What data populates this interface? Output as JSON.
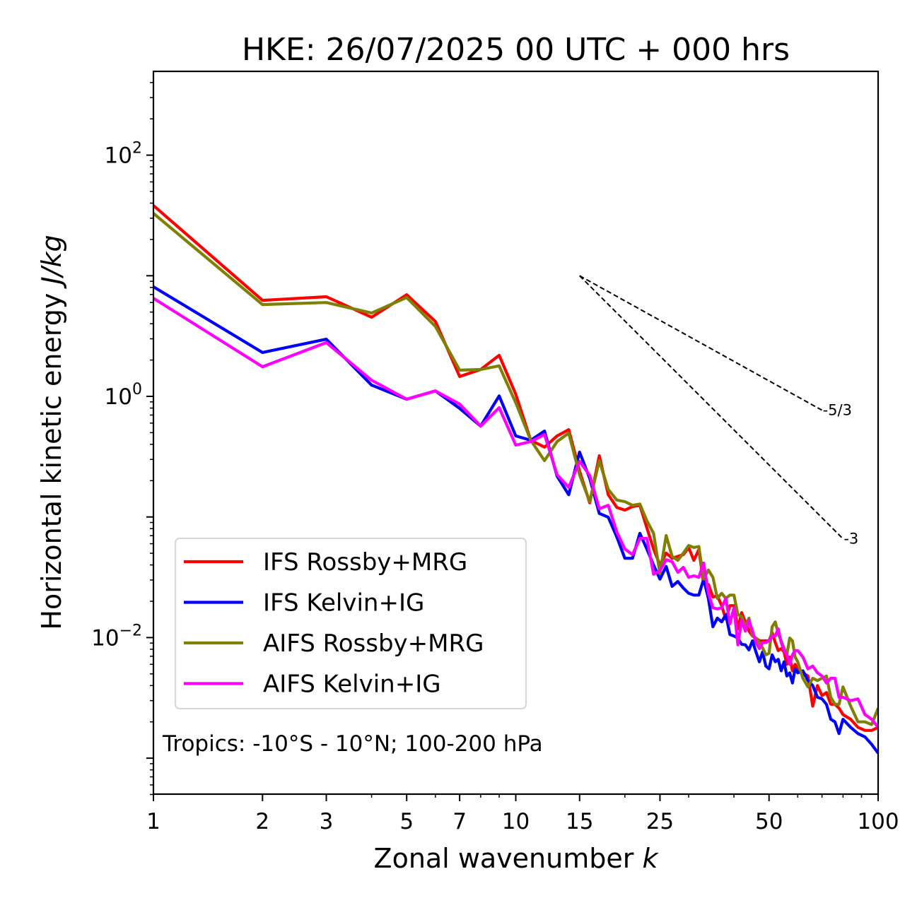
{
  "chart_data": {
    "type": "line",
    "title": "HKE: 26/07/2025 00 UTC + 000 hrs",
    "xlabel": "Zonal wavenumber",
    "xlabel_italic": "k",
    "ylabel": "Horizontal kinetic energy",
    "ylabel_italic": "J/kg",
    "xscale": "log",
    "yscale": "log",
    "xlim": [
      1,
      100
    ],
    "ylim": [
      0.0005,
      500
    ],
    "grid": false,
    "x_ticks": [
      {
        "value": 1,
        "label": "1"
      },
      {
        "value": 2,
        "label": "2"
      },
      {
        "value": 3,
        "label": "3"
      },
      {
        "value": 5,
        "label": "5"
      },
      {
        "value": 7,
        "label": "7"
      },
      {
        "value": 10,
        "label": "10"
      },
      {
        "value": 15,
        "label": "15"
      },
      {
        "value": 25,
        "label": "25"
      },
      {
        "value": 50,
        "label": "50"
      },
      {
        "value": 100,
        "label": "100"
      }
    ],
    "x_minor_ticks": [
      4,
      6,
      8,
      9,
      20,
      30,
      40,
      60,
      70,
      80,
      90
    ],
    "y_ticks": [
      {
        "value": 100,
        "base": "10",
        "exp": "2"
      },
      {
        "value": 1,
        "base": "10",
        "exp": "0"
      },
      {
        "value": 0.01,
        "base": "10",
        "exp": "−2"
      }
    ],
    "legend_position": "lower-left",
    "annotation": "Tropics: -10°S - 10°N; 100-200 hPa",
    "reference_lines": [
      {
        "label": "-5/3",
        "slope": -1.6667,
        "k_start": 15,
        "e_start": 10,
        "k_end": 70
      },
      {
        "label": "-3",
        "slope": -3,
        "k_start": 15,
        "e_start": 10,
        "k_end": 80
      }
    ],
    "k": [
      1,
      2,
      3,
      4,
      5,
      6,
      7,
      8,
      9,
      10,
      11,
      12,
      13,
      14,
      15,
      16,
      17,
      18,
      19,
      20,
      21,
      22,
      23,
      24,
      25,
      26,
      27,
      28,
      29,
      30,
      31,
      32,
      33,
      34,
      35,
      36,
      37,
      38,
      39,
      40,
      41,
      42,
      43,
      44,
      45,
      46,
      47,
      48,
      49,
      50,
      51,
      52,
      53,
      54,
      55,
      56,
      57,
      58,
      59,
      60,
      62,
      64,
      66,
      68,
      70,
      72,
      74,
      76,
      78,
      80,
      84,
      88,
      92,
      96,
      100
    ],
    "series": [
      {
        "name": "IFS Rossby+MRG",
        "color": "#ff0000",
        "values": [
          38.2,
          6.25,
          6.7,
          4.53,
          6.97,
          4.18,
          1.46,
          1.67,
          2.19,
          1.04,
          0.433,
          0.379,
          0.47,
          0.53,
          0.24,
          0.131,
          0.322,
          0.153,
          0.12,
          0.114,
          0.122,
          0.125,
          0.0812,
          0.0542,
          0.0399,
          0.0502,
          0.0454,
          0.0471,
          0.0487,
          0.0558,
          0.0437,
          0.0536,
          0.0283,
          0.0276,
          0.0217,
          0.0222,
          0.0184,
          0.0142,
          0.0184,
          0.0184,
          0.0118,
          0.0161,
          0.0135,
          0.0113,
          0.0103,
          0.0099,
          0.0094,
          0.0094,
          0.0094,
          0.0094,
          0.011,
          0.0091,
          0.0078,
          0.0081,
          0.0076,
          0.006,
          0.0069,
          0.0053,
          0.006,
          0.0055,
          0.0051,
          0.0048,
          0.0027,
          0.004,
          0.0033,
          0.0035,
          0.0028,
          0.0028,
          0.0026,
          0.0023,
          0.0021,
          0.0018,
          0.0017,
          0.0017,
          0.0018
        ]
      },
      {
        "name": "IFS Kelvin+IG",
        "color": "#0000ff",
        "values": [
          8.1,
          2.31,
          2.98,
          1.24,
          0.947,
          1.11,
          0.795,
          0.567,
          1.01,
          0.47,
          0.433,
          0.516,
          0.218,
          0.153,
          0.345,
          0.209,
          0.107,
          0.0995,
          0.0683,
          0.0454,
          0.0454,
          0.0731,
          0.0542,
          0.0399,
          0.0305,
          0.0389,
          0.0266,
          0.0292,
          0.0257,
          0.0233,
          0.0225,
          0.0225,
          0.0305,
          0.0211,
          0.0123,
          0.0145,
          0.0135,
          0.0155,
          0.0106,
          0.0103,
          0.0099,
          0.0088,
          0.0087,
          0.0079,
          0.0094,
          0.0076,
          0.0063,
          0.0076,
          0.0058,
          0.0055,
          0.0072,
          0.0063,
          0.0066,
          0.0053,
          0.0063,
          0.0048,
          0.0051,
          0.0042,
          0.0055,
          0.0051,
          0.0053,
          0.0044,
          0.004,
          0.0032,
          0.0031,
          0.0028,
          0.0021,
          0.002,
          0.0016,
          0.0021,
          0.0018,
          0.0016,
          0.0015,
          0.0013,
          0.0011
        ]
      },
      {
        "name": "AIFS Rossby+MRG",
        "color": "#808000",
        "values": [
          32.9,
          5.77,
          6.0,
          4.91,
          6.6,
          3.8,
          1.65,
          1.67,
          1.79,
          0.885,
          0.433,
          0.293,
          0.422,
          0.496,
          0.224,
          0.134,
          0.293,
          0.169,
          0.138,
          0.134,
          0.125,
          0.128,
          0.093,
          0.0731,
          0.0339,
          0.0701,
          0.0471,
          0.0437,
          0.0502,
          0.058,
          0.0558,
          0.0569,
          0.0305,
          0.0363,
          0.0316,
          0.0211,
          0.0233,
          0.0211,
          0.0225,
          0.0225,
          0.0155,
          0.0149,
          0.0123,
          0.0145,
          0.0103,
          0.0099,
          0.0091,
          0.0082,
          0.0072,
          0.0074,
          0.0123,
          0.0135,
          0.0108,
          0.0094,
          0.0082,
          0.0072,
          0.0099,
          0.0094,
          0.0069,
          0.0063,
          0.0046,
          0.0039,
          0.0046,
          0.0044,
          0.0046,
          0.0048,
          0.0032,
          0.0028,
          0.0028,
          0.0039,
          0.0027,
          0.002,
          0.002,
          0.0019,
          0.0026
        ]
      },
      {
        "name": "AIFS Kelvin+IG",
        "color": "#ff00ff",
        "values": [
          6.5,
          1.76,
          2.79,
          1.36,
          0.947,
          1.11,
          0.862,
          0.567,
          0.806,
          0.394,
          0.422,
          0.483,
          0.224,
          0.176,
          0.289,
          0.221,
          0.117,
          0.125,
          0.075,
          0.0542,
          0.0487,
          0.0664,
          0.0664,
          0.0335,
          0.0358,
          0.0443,
          0.0426,
          0.0348,
          0.0382,
          0.0316,
          0.0325,
          0.0316,
          0.0415,
          0.0233,
          0.0177,
          0.0173,
          0.0177,
          0.0211,
          0.013,
          0.0177,
          0.0087,
          0.0139,
          0.0113,
          0.0139,
          0.0113,
          0.0091,
          0.0081,
          0.0091,
          0.0091,
          0.0094,
          0.0103,
          0.0103,
          0.0118,
          0.0091,
          0.0078,
          0.0072,
          0.006,
          0.0072,
          0.0078,
          0.0078,
          0.0069,
          0.0055,
          0.0058,
          0.0051,
          0.0048,
          0.0042,
          0.0046,
          0.0046,
          0.0032,
          0.0032,
          0.003,
          0.0031,
          0.0023,
          0.0021,
          0.0018
        ]
      }
    ]
  }
}
